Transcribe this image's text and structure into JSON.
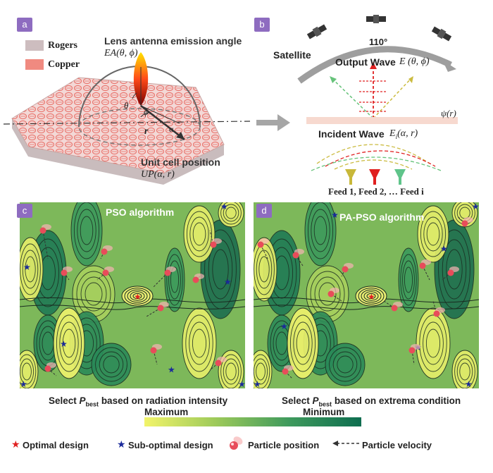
{
  "panel_a": {
    "tag": "a",
    "legend": [
      {
        "label": "Rogers",
        "color": "#cdbdbf"
      },
      {
        "label": "Copper",
        "color": "#f08a80"
      }
    ],
    "title_line1": "Lens antenna emission angle",
    "title_line2": "EA(θ, ϕ)",
    "theta": "θ",
    "phi": "ϕ",
    "r": "r",
    "alpha": "α",
    "unit_line1": "Unit cell position",
    "unit_line2": "UP(α, r)"
  },
  "panel_b": {
    "tag": "b",
    "satellite": "Satellite",
    "angle": "110°",
    "output_wave": "Output Wave",
    "output_wave_math": "E (θ, ϕ)",
    "psi": "ψ(r)",
    "incident_wave": "Incident Wave",
    "incident_wave_math": "E",
    "incident_sub": "i",
    "incident_args": "(α, r)",
    "feeds": "Feed 1,  Feed 2, … Feed i",
    "feed_colors": [
      "#c8b83a",
      "#e02020",
      "#5fc48a"
    ]
  },
  "panel_c": {
    "tag": "c",
    "title": "PSO algorithm",
    "caption_pre": "Select ",
    "caption_p": "P",
    "caption_sub": "best",
    "caption_post": " based on radiation intensity"
  },
  "panel_d": {
    "tag": "d",
    "title": "PA-PSO algorithm",
    "caption_pre": "Select ",
    "caption_p": "P",
    "caption_sub": "best",
    "caption_post": " based on extrema condition"
  },
  "colorbar": {
    "max_label": "Maximum",
    "min_label": "Minimum",
    "colors": [
      "#f2f46a",
      "#9cc95a",
      "#3f9a5d",
      "#0f6e50"
    ]
  },
  "legend": {
    "optimal": "Optimal design",
    "suboptimal": "Sub-optimal design",
    "particle": "Particle position",
    "velocity": "Particle velocity"
  }
}
